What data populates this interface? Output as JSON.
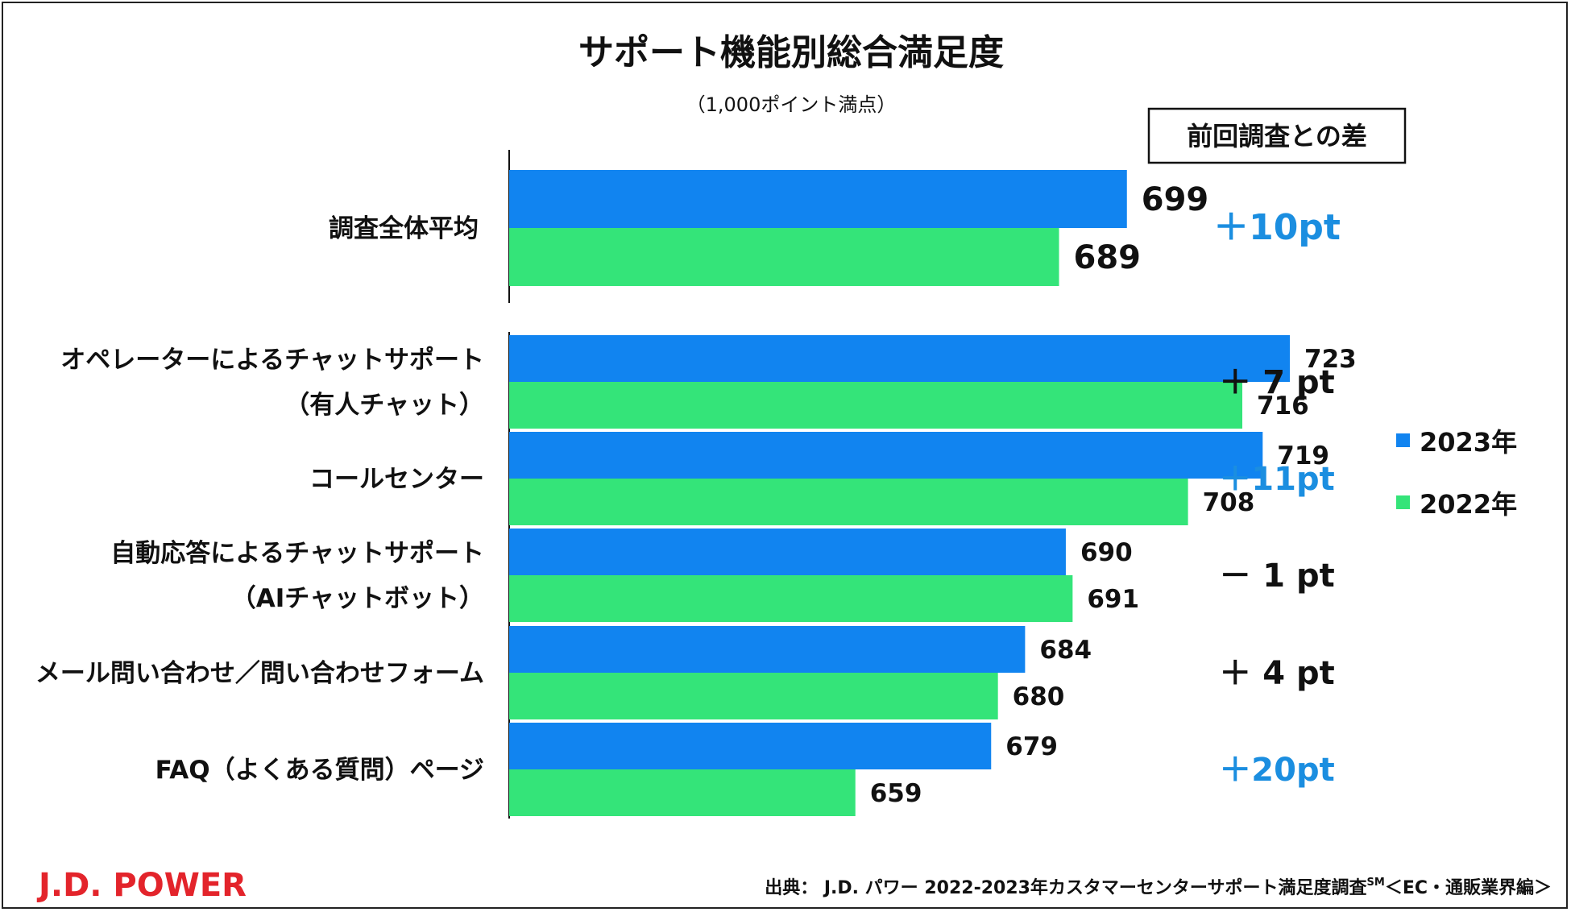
{
  "brand": {
    "name": "J.D. POWER",
    "color": "#e3242b"
  },
  "source": {
    "text": "出典： J.D. パワー 2022-2023年カスタマーセンターサポート満足度調査",
    "sup": "SM",
    "suffix": "＜EC・通販業界編＞"
  },
  "chart_data": {
    "type": "bar",
    "orientation": "horizontal",
    "title": "サポート機能別総合満足度",
    "subtitle": "（1,000ポイント満点）",
    "diff_header": "前回調査との差",
    "categories": [
      [
        "調査全体平均"
      ],
      [
        "オペレーターによるチャットサポート",
        "（有人チャット）"
      ],
      [
        "コールセンター"
      ],
      [
        "自動応答によるチャットサポート",
        "（AIチャットボット）"
      ],
      [
        "メール問い合わせ／問い合わせフォーム"
      ],
      [
        "FAQ（よくある質問）ページ"
      ]
    ],
    "series": [
      {
        "name": "2023年",
        "color": "#1184f0",
        "values": [
          699,
          723,
          719,
          690,
          684,
          679
        ]
      },
      {
        "name": "2022年",
        "color": "#34e479",
        "values": [
          689,
          716,
          708,
          691,
          680,
          659
        ]
      }
    ],
    "differences": [
      "＋10pt",
      "＋ 7 pt",
      "＋11pt",
      "－ 1 pt",
      "＋ 4 pt",
      "＋20pt"
    ],
    "difference_colors": [
      "#1b8ee0",
      "#111111",
      "#1b8ee0",
      "#111111",
      "#111111",
      "#1b8ee0"
    ],
    "legend_position": "right",
    "grid": false
  }
}
